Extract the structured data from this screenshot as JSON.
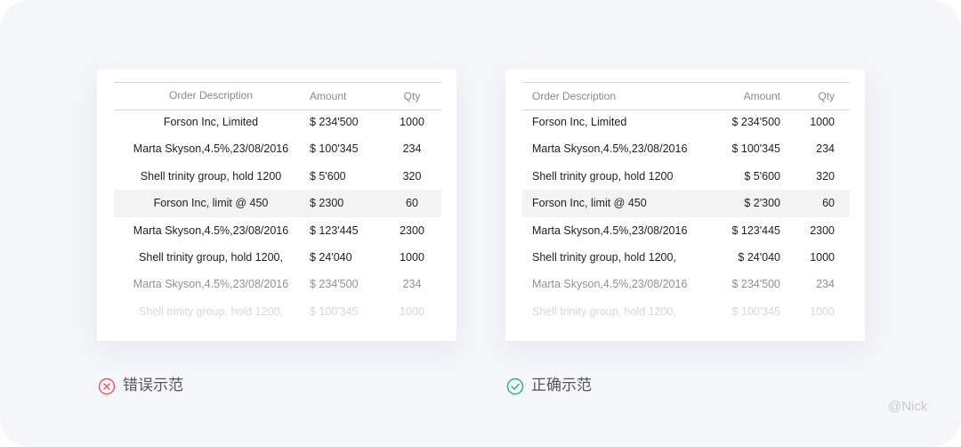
{
  "panels": [
    {
      "headers": [
        "Order Description",
        "Amount",
        "Qty"
      ],
      "rows": [
        [
          "Forson Inc, Limited",
          "$ 234'500",
          "1000"
        ],
        [
          "Marta Skyson,4.5%,23/08/2016",
          "$ 100'345",
          "234"
        ],
        [
          "Shell trinity group, hold 1200",
          "$ 5'600",
          "320"
        ],
        [
          "Forson Inc, limit @ 450",
          "$ 2300",
          "60"
        ],
        [
          "Marta Skyson,4.5%,23/08/2016",
          "$ 123'445",
          "2300"
        ],
        [
          "Shell trinity group, hold 1200,",
          "$ 24'040",
          "1000"
        ],
        [
          "Marta Skyson,4.5%,23/08/2016",
          "$ 234'500",
          "234"
        ],
        [
          "Shell trinity group, hold 1200,",
          "$ 100'345",
          "1000"
        ]
      ],
      "caption": "错误示范"
    },
    {
      "headers": [
        "Order Description",
        "Amount",
        "Qty"
      ],
      "rows": [
        [
          "Forson Inc, Limited",
          "$ 234'500",
          "1000"
        ],
        [
          "Marta Skyson,4.5%,23/08/2016",
          "$ 100'345",
          "234"
        ],
        [
          "Shell trinity group, hold 1200",
          "$ 5'600",
          "320"
        ],
        [
          "Forson Inc, limit @ 450",
          "$ 2'300",
          "60"
        ],
        [
          "Marta Skyson,4.5%,23/08/2016",
          "$ 123'445",
          "2300"
        ],
        [
          "Shell trinity group, hold 1200,",
          "$ 24'040",
          "1000"
        ],
        [
          "Marta Skyson,4.5%,23/08/2016",
          "$ 234'500",
          "234"
        ],
        [
          "Shell trinity group, hold 1200,",
          "$ 100'345",
          "1000"
        ]
      ],
      "caption": "正确示范"
    }
  ],
  "watermark": "@Nick"
}
